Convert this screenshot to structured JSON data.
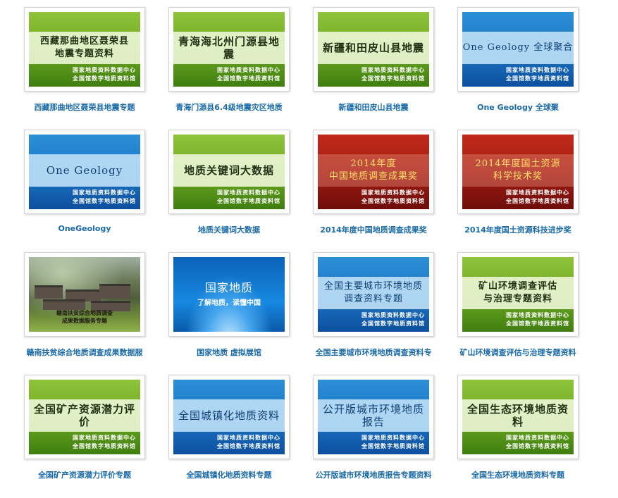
{
  "footer_line1": "国家地质资料数据中心",
  "footer_line2": "全国馆数字地质资料馆",
  "cards": [
    {
      "theme": "green",
      "title": "西藏那曲地区聂荣县\n地震专题资料",
      "label": "西藏那曲地区聂荣县地震专题"
    },
    {
      "theme": "green",
      "title": "青海海北州门源县地震",
      "label": "青海门源县6.4级地震灾区地质"
    },
    {
      "theme": "green",
      "title": "新疆和田皮山县地震",
      "label": "新疆和田皮山县地震"
    },
    {
      "theme": "blue",
      "title": "One Geology 全球聚合",
      "label": "One Geology 全球聚"
    },
    {
      "theme": "blue",
      "title": "One Geology",
      "label": "OneGeology"
    },
    {
      "theme": "green",
      "title": "地质关键词大数据",
      "label": "地质关键词大数据"
    },
    {
      "theme": "red",
      "title": "2014年度\n中国地质调查成果奖",
      "label": "2014年度中国地质调查成果奖"
    },
    {
      "theme": "red",
      "title": "2014年度国土资源\n科学技术奖",
      "label": "2014年度国土资源科技进步奖"
    },
    {
      "theme": "photo",
      "title": "赣南扶贫综合地质调查\n成果数据服务专题",
      "label": "赣南扶贫综合地质调查成果数据服"
    },
    {
      "theme": "shine",
      "title": "国家地质",
      "subtitle": "了解地质，读懂中国",
      "label": "国家地质 虚拟展馆"
    },
    {
      "theme": "blue",
      "title": "全国主要城市环境地质\n调查资料专题",
      "label": "全国主要城市环境地质调查资料专"
    },
    {
      "theme": "green",
      "title": "矿山环境调查评估\n与治理专题资料",
      "label": "矿山环境调查评估与治理专题资料"
    },
    {
      "theme": "green",
      "title": "全国矿产资源潜力评价",
      "label": "全国矿产资源潜力评价专题"
    },
    {
      "theme": "blue",
      "title": "全国城镇化地质资料",
      "label": "全国城镇化地质资料专题"
    },
    {
      "theme": "blue",
      "title": "公开版城市环境地质报告",
      "label": "公开版城市环境地质报告专题资料"
    },
    {
      "theme": "green",
      "title": "全国生态环境地质资料",
      "label": "全国生态环境地质资料专题"
    }
  ]
}
